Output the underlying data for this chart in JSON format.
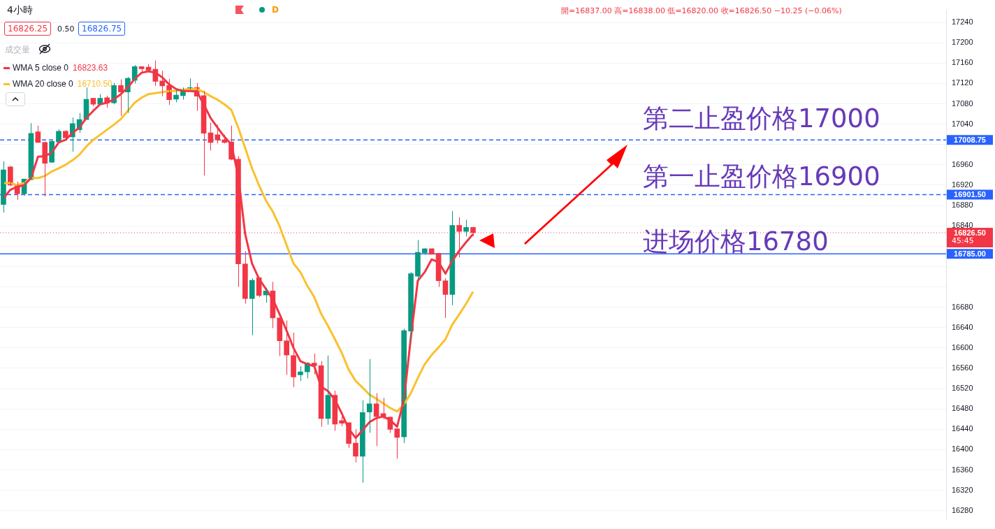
{
  "chart_data": {
    "type": "candlestick",
    "title": "4小時",
    "categories": [
      null,
      null,
      null,
      null,
      null,
      null,
      null,
      null,
      null,
      null,
      null,
      null,
      null,
      null,
      null,
      null,
      null,
      null,
      null,
      null,
      null,
      null,
      null,
      null,
      null,
      null,
      null,
      null,
      null,
      null,
      null,
      null,
      null,
      null,
      null,
      null,
      null,
      null,
      null,
      null,
      null,
      null,
      null,
      null,
      null,
      null,
      null,
      null,
      null,
      null,
      null,
      null,
      null,
      null,
      null,
      null,
      null,
      null,
      null,
      null,
      null,
      null,
      null,
      null,
      null,
      null,
      null,
      null,
      null,
      null,
      null,
      null,
      null,
      null,
      null,
      null,
      null,
      null,
      null,
      null,
      null,
      null,
      null,
      null,
      null,
      null,
      null,
      null,
      null,
      null,
      null,
      null,
      null,
      null,
      null,
      null,
      null,
      null,
      null,
      null,
      null,
      null,
      null,
      null,
      null,
      null,
      null,
      null,
      null,
      null,
      null,
      null,
      null,
      null,
      null,
      null,
      null,
      null,
      null,
      null,
      null,
      null,
      null,
      null,
      null,
      null,
      null,
      null,
      null,
      null,
      null,
      null,
      null,
      null,
      null,
      null,
      null
    ],
    "ohlc": [
      [
        16882,
        16967,
        16866,
        16950
      ],
      [
        16956,
        16958,
        16918,
        16920
      ],
      [
        16920,
        16927,
        16891,
        16903
      ],
      [
        16903,
        16932,
        16899,
        16932
      ],
      [
        16931,
        17042,
        16930,
        17022
      ],
      [
        17025,
        17037,
        17004,
        17004
      ],
      [
        17004,
        17006,
        16898,
        16963
      ],
      [
        16965,
        17009,
        16964,
        17006
      ],
      [
        17005,
        17030,
        17005,
        17026
      ],
      [
        17026,
        17028,
        17011,
        17013
      ],
      [
        17015,
        17053,
        16986,
        17041
      ],
      [
        17029,
        17062,
        17023,
        17049
      ],
      [
        17049,
        17112,
        17049,
        17089
      ],
      [
        17091,
        17091,
        17075,
        17079
      ],
      [
        17079,
        17099,
        17079,
        17091
      ],
      [
        17092,
        17096,
        17072,
        17082
      ],
      [
        17082,
        17121,
        17079,
        17116
      ],
      [
        17116,
        17128,
        17056,
        17103
      ],
      [
        17103,
        17133,
        17062,
        17130
      ],
      [
        17126,
        17156,
        17120,
        17153
      ],
      [
        17153,
        17153,
        17142,
        17149
      ],
      [
        17152,
        17158,
        17142,
        17146
      ],
      [
        17148,
        17165,
        17115,
        17124
      ],
      [
        17125,
        17145,
        17095,
        17115
      ],
      [
        17116,
        17129,
        17078,
        17088
      ],
      [
        17089,
        17109,
        17083,
        17097
      ],
      [
        17096,
        17112,
        17088,
        17109
      ],
      [
        17109,
        17130,
        17108,
        17112
      ],
      [
        17112,
        17121,
        17066,
        17095
      ],
      [
        17096,
        17105,
        16939,
        17022
      ],
      [
        17023,
        17043,
        16988,
        17004
      ],
      [
        17019,
        17039,
        17002,
        17009
      ],
      [
        17009,
        17019,
        17002,
        17004
      ],
      [
        17005,
        17037,
        16969,
        16971
      ],
      [
        16971,
        16977,
        16720,
        16765
      ],
      [
        16765,
        16790,
        16687,
        16697
      ],
      [
        16697,
        16737,
        16625,
        16733
      ],
      [
        16738,
        16738,
        16700,
        16703
      ],
      [
        16704,
        16718,
        16689,
        16712
      ],
      [
        16712,
        16730,
        16639,
        16659
      ],
      [
        16659,
        16659,
        16584,
        16614
      ],
      [
        16614,
        16654,
        16547,
        16586
      ],
      [
        16585,
        16630,
        16523,
        16543
      ],
      [
        16547,
        16564,
        16535,
        16553
      ],
      [
        16553,
        16572,
        16540,
        16570
      ],
      [
        16570,
        16589,
        16548,
        16565
      ],
      [
        16565,
        16574,
        16445,
        16461
      ],
      [
        16461,
        16585,
        16449,
        16507
      ],
      [
        16507,
        16516,
        16437,
        16450
      ],
      [
        16457,
        16465,
        16446,
        16452
      ],
      [
        16453,
        16453,
        16403,
        16412
      ],
      [
        16413,
        16440,
        16375,
        16387
      ],
      [
        16387,
        16497,
        16335,
        16473
      ],
      [
        16474,
        16578,
        16433,
        16490
      ],
      [
        16490,
        16511,
        16407,
        16465
      ],
      [
        16471,
        16502,
        16460,
        16465
      ],
      [
        16464,
        16464,
        16433,
        16440
      ],
      [
        16441,
        16441,
        16382,
        16424
      ],
      [
        16425,
        16638,
        16413,
        16634
      ],
      [
        16633,
        16749,
        16614,
        16746
      ],
      [
        16741,
        16812,
        16733,
        16788
      ],
      [
        16787,
        16796,
        16783,
        16795
      ],
      [
        16795,
        16796,
        16784,
        16784
      ],
      [
        16786,
        16786,
        16720,
        16732
      ],
      [
        16732,
        16737,
        16659,
        16705
      ],
      [
        16705,
        16869,
        16684,
        16841
      ],
      [
        16841,
        16857,
        16778,
        16829
      ],
      [
        16829,
        16852,
        16819,
        16837
      ],
      [
        16837,
        16838,
        16820,
        16826.5
      ],
      null,
      null,
      null,
      null,
      null,
      null,
      null,
      null,
      null,
      null,
      null,
      null,
      null,
      null,
      null,
      null,
      null,
      null,
      null,
      null,
      null,
      null,
      null,
      null,
      null,
      null,
      null,
      null,
      null,
      null,
      null,
      null,
      null,
      null,
      null,
      null,
      null,
      null,
      null,
      null,
      null,
      null,
      null,
      null,
      null,
      null,
      null,
      null,
      null,
      null,
      null,
      null,
      null,
      null,
      null,
      null,
      null,
      null,
      null,
      null,
      null,
      null,
      null,
      null,
      null,
      null,
      null,
      null
    ],
    "colors": [
      "#089981",
      "#f23645",
      "#f23645",
      "#089981",
      "#089981",
      "#f23645",
      "#f23645",
      "#089981",
      "#089981",
      "#f23645",
      "#089981",
      "#089981",
      "#089981",
      "#f23645",
      "#089981",
      "#f23645",
      "#089981",
      "#f23645",
      "#089981",
      "#089981",
      "#f23645",
      "#f23645",
      "#f23645",
      "#f23645",
      "#f23645",
      "#089981",
      "#089981",
      "#089981",
      "#f23645",
      "#f23645",
      "#f23645",
      "#f23645",
      "#f23645",
      "#f23645",
      "#f23645",
      "#f23645",
      "#089981",
      "#f23645",
      "#089981",
      "#f23645",
      "#f23645",
      "#f23645",
      "#f23645",
      "#089981",
      "#089981",
      "#f23645",
      "#f23645",
      "#089981",
      "#f23645",
      "#f23645",
      "#f23645",
      "#f23645",
      "#089981",
      "#089981",
      "#f23645",
      "#f23645",
      "#f23645",
      "#f23645",
      "#089981",
      "#089981",
      "#089981",
      "#089981",
      "#f23645",
      "#f23645",
      "#f23645",
      "#089981",
      "#f23645",
      "#089981",
      "#f23645",
      null,
      null,
      null,
      null,
      null,
      null,
      null,
      null,
      null,
      null,
      null,
      null,
      null,
      null,
      null,
      null,
      null,
      null,
      null,
      null,
      null,
      null,
      null,
      null,
      null,
      null,
      null,
      null,
      null,
      null,
      null,
      null,
      null,
      null,
      null,
      null,
      null,
      null,
      null,
      null,
      null,
      null,
      null,
      null,
      null,
      null,
      null,
      null,
      null,
      null,
      null,
      null,
      null,
      null,
      null,
      null,
      null,
      null,
      null,
      null,
      null,
      null,
      null,
      null,
      null,
      null,
      null,
      null
    ],
    "series": [
      {
        "name": "WMA 5 close 0",
        "type": "line",
        "color": "#f23645",
        "values": [
          16894,
          16911,
          16917,
          16920,
          16934,
          16976,
          16977,
          16984,
          17004,
          17009,
          17023,
          17033,
          17052,
          17066,
          17079,
          17082,
          17089,
          17099,
          17112,
          17129,
          17141,
          17144,
          17141,
          17132,
          17118,
          17109,
          17105,
          17105,
          17104,
          17079,
          17052,
          17033,
          17015,
          17000,
          16938,
          16824,
          16766,
          16736,
          16716,
          16696,
          16666,
          16634,
          16600,
          16574,
          16568,
          16564,
          16524,
          16515,
          16498,
          16471,
          16441,
          16423,
          16438,
          16454,
          16462,
          16465,
          16458,
          16445,
          16498,
          16621,
          16732,
          16749,
          16774,
          16769,
          16746,
          16771,
          16791,
          16808,
          16823.63,
          null,
          null,
          null,
          null,
          null,
          null,
          null,
          null,
          null,
          null,
          null,
          null,
          null,
          null,
          null,
          null,
          null,
          null,
          null,
          null,
          null,
          null,
          null,
          null,
          null,
          null,
          null,
          null,
          null,
          null,
          null,
          null,
          null,
          null,
          null,
          null,
          null,
          null,
          null,
          null,
          null,
          null,
          null,
          null,
          null,
          null,
          null,
          null,
          null,
          null,
          null,
          null,
          null,
          null,
          null,
          null,
          null,
          null,
          null,
          null,
          null,
          null,
          null,
          null,
          null,
          null,
          null,
          null
        ]
      },
      {
        "name": "WMA 20 close 0",
        "type": "line",
        "color": "#fbc02d",
        "values": [
          16924,
          16924,
          16920,
          16924,
          16934,
          16934,
          16938,
          16947,
          16953,
          16960,
          16969,
          16980,
          16996,
          17009,
          17019,
          17029,
          17039,
          17050,
          17066,
          17082,
          17092,
          17099,
          17101,
          17103,
          17105,
          17105,
          17108,
          17109,
          17109,
          17103,
          17095,
          17088,
          17079,
          17068,
          17033,
          16993,
          16953,
          16920,
          16890,
          16868,
          16839,
          16802,
          16766,
          16749,
          16722,
          16700,
          16667,
          16643,
          16617,
          16590,
          16557,
          16535,
          16522,
          16508,
          16500,
          16491,
          16482,
          16475,
          16489,
          16511,
          16541,
          16568,
          16586,
          16601,
          16617,
          16646,
          16666,
          16687,
          16710.5,
          null,
          null,
          null,
          null,
          null,
          null,
          null,
          null,
          null,
          null,
          null,
          null,
          null,
          null,
          null,
          null,
          null,
          null,
          null,
          null,
          null,
          null,
          null,
          null,
          null,
          null,
          null,
          null,
          null,
          null,
          null,
          null,
          null,
          null,
          null,
          null,
          null,
          null,
          null,
          null,
          null,
          null,
          null,
          null,
          null,
          null,
          null,
          null,
          null,
          null,
          null,
          null,
          null,
          null,
          null,
          null,
          null,
          null,
          null,
          null,
          null,
          null,
          null,
          null,
          null,
          null,
          null,
          null
        ]
      }
    ],
    "ylim": [
      16264,
      17264
    ],
    "yticks": [
      16280,
      16320,
      16360,
      16400,
      16440,
      16480,
      16520,
      16560,
      16600,
      16640,
      16680,
      {
        "value": 16720,
        "label": null
      },
      {
        "value": 16760,
        "label": null
      },
      {
        "value": 16800,
        "label": null
      },
      16840,
      16880,
      16920,
      16960,
      {
        "value": 17000,
        "label": null
      },
      17040,
      17080,
      17120,
      17160,
      17200,
      17240
    ],
    "grid": "y",
    "legend": "top left",
    "marker": "none",
    "ref_lines": [
      {
        "axis": "y",
        "value": 17008.75,
        "label": "17008.75",
        "color": "#2962ff",
        "line_style": "dashed"
      },
      {
        "axis": "y",
        "value": 16901.5,
        "label": "16901.50",
        "color": "#2962ff",
        "line_style": "dashed"
      },
      {
        "axis": "y",
        "value": 16826.5,
        "label": "16826.50",
        "color": "#f23645",
        "line_style": "dotted"
      },
      {
        "axis": "y",
        "value": 16785,
        "label": "16785.00",
        "color": "#2962ff",
        "line_style": "solid"
      }
    ],
    "annotations": [
      "開=16837.00 高=16838.00 低=16820.00 收=16826.50 −10.25 (−0.06%)",
      "16826.25",
      "0.50",
      "16826.75",
      "成交量",
      "D",
      "第二止盈价格17000",
      "第一止盈价格16900",
      "进场价格16780",
      "45:45",
      "16823.63",
      "16710.50"
    ]
  }
}
